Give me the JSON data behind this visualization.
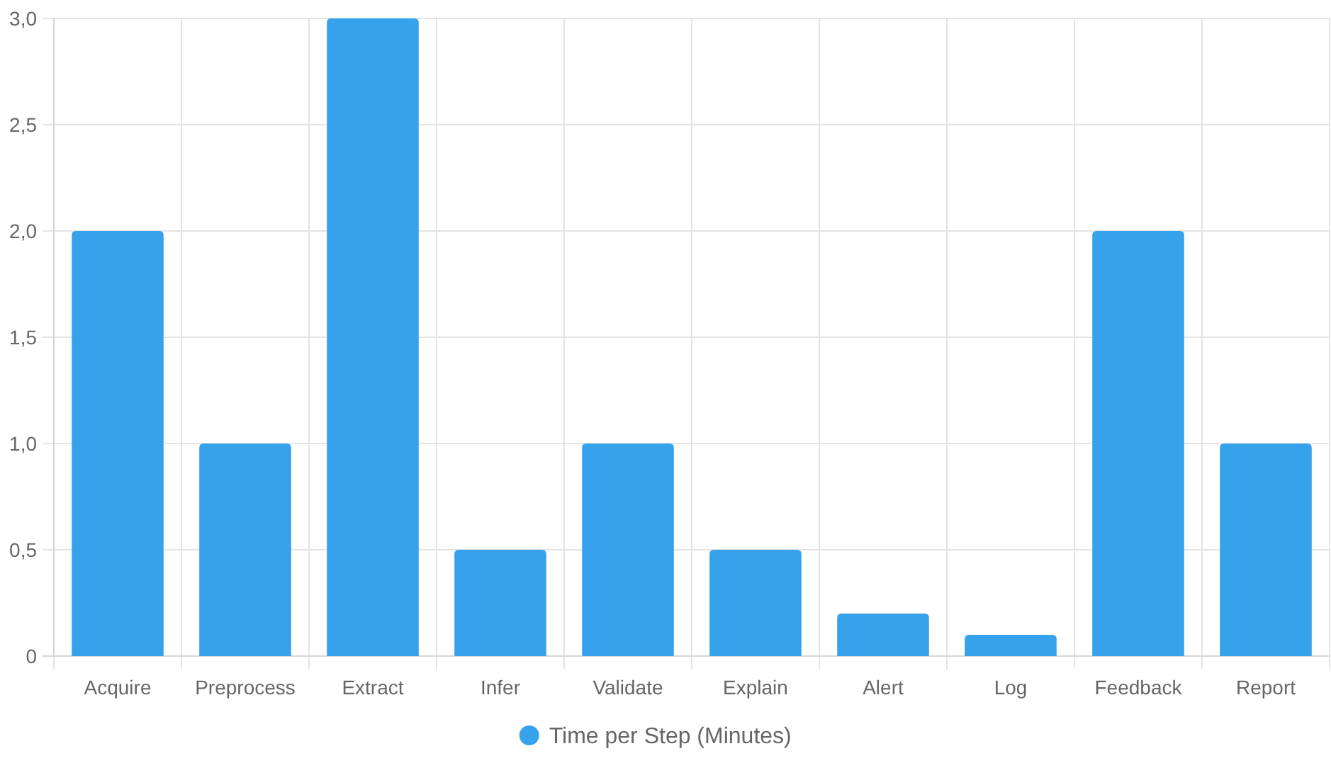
{
  "chart_data": {
    "type": "bar",
    "categories": [
      "Acquire",
      "Preprocess",
      "Extract",
      "Infer",
      "Validate",
      "Explain",
      "Alert",
      "Log",
      "Feedback",
      "Report"
    ],
    "series": [
      {
        "name": "Time per Step (Minutes)",
        "color": "#36a2eb",
        "values": [
          2,
          1,
          3,
          0.5,
          1,
          0.5,
          0.2,
          0.1,
          2,
          1
        ]
      }
    ],
    "ylim": [
      0,
      3
    ],
    "yticks": [
      0,
      {
        "value": 0.5,
        "label": "0,5"
      },
      {
        "value": 1,
        "label": "1,0"
      },
      {
        "value": 1.5,
        "label": "1,5"
      },
      {
        "value": 2,
        "label": "2,0"
      },
      {
        "value": 2.5,
        "label": "2,5"
      },
      {
        "value": 3,
        "label": "3,0"
      }
    ],
    "grid": true,
    "legend": "bottom"
  }
}
